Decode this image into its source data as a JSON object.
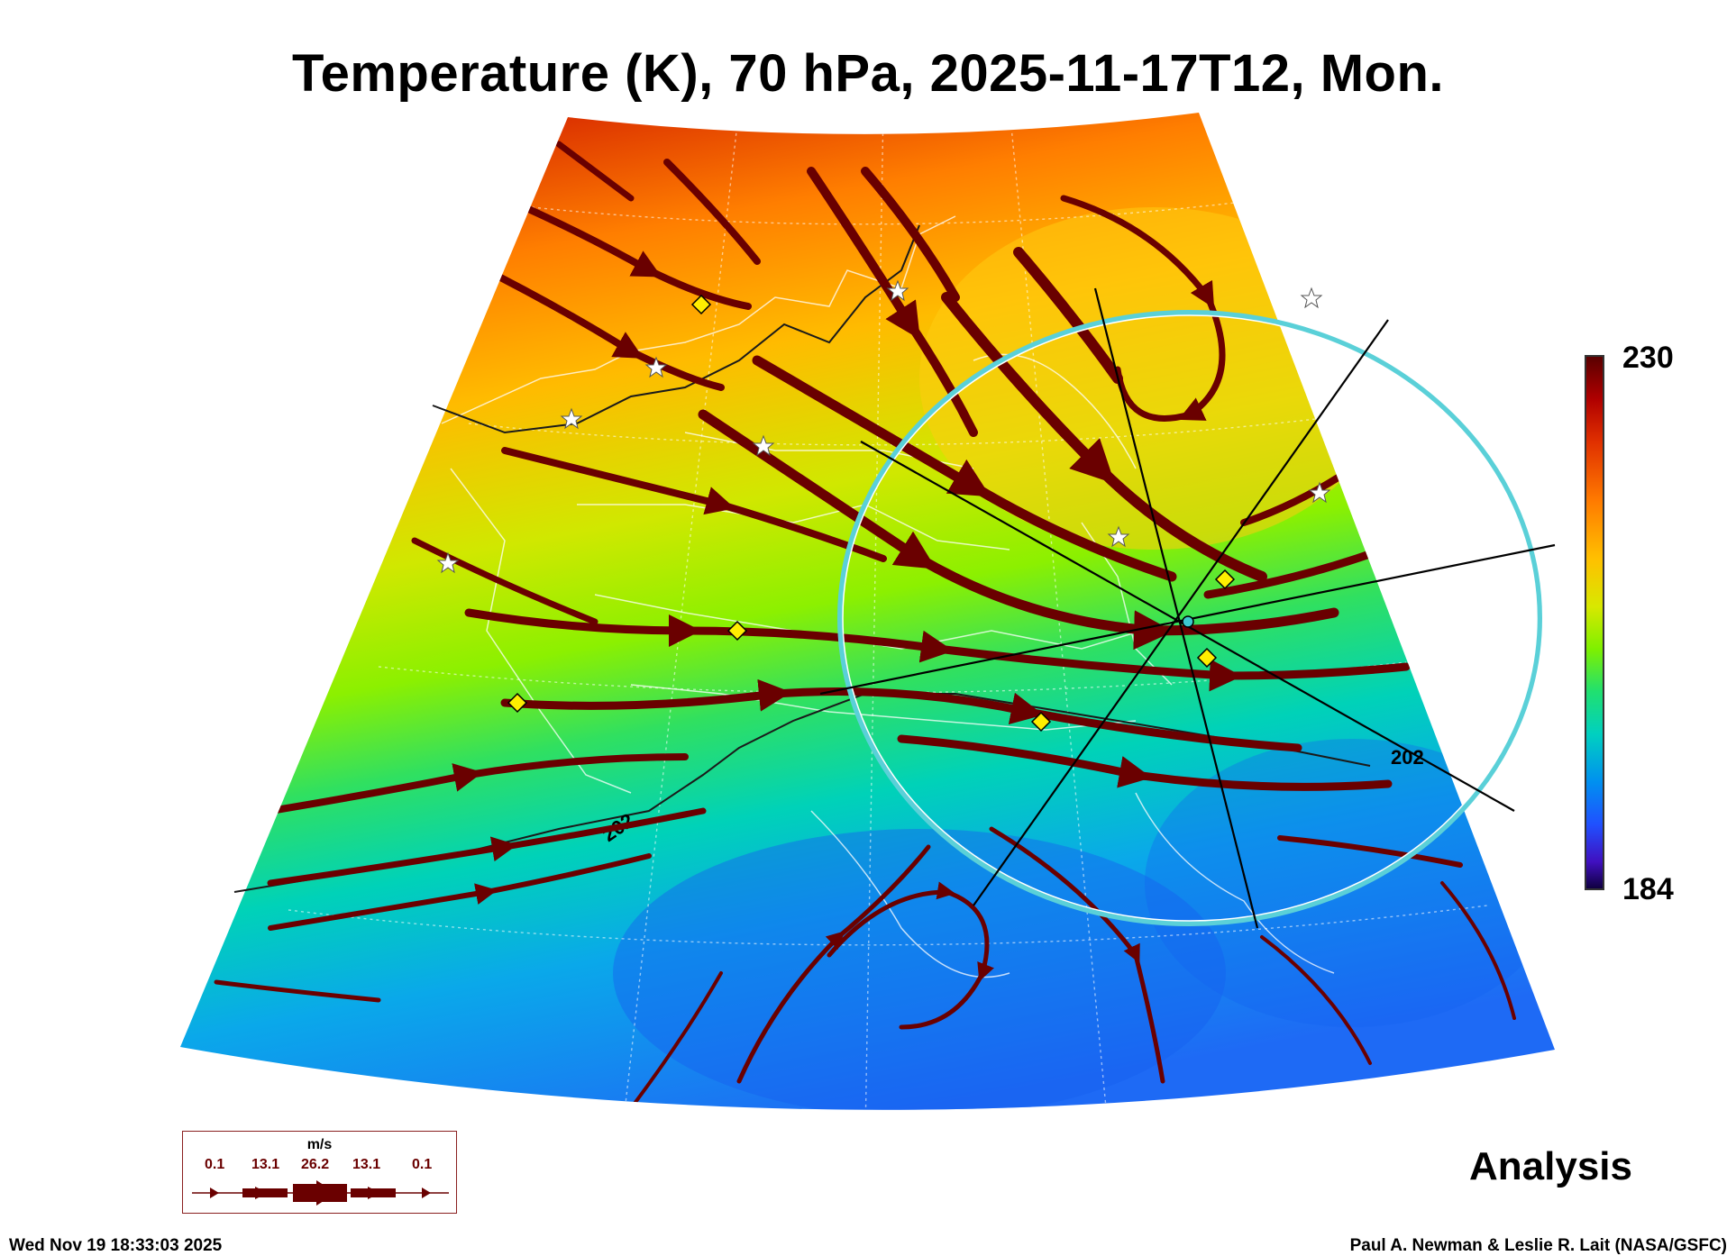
{
  "title": "Temperature (K), 70 hPa, 2025-11-17T12, Mon.",
  "colorbar": {
    "max_label": "230",
    "min_label": "184",
    "max": 230,
    "min": 184
  },
  "contour_labels": [
    "202",
    "202"
  ],
  "wind_legend": {
    "unit": "m/s",
    "values": [
      "0.1",
      "13.1",
      "26.2",
      "13.1",
      "0.1"
    ]
  },
  "product_label": "Analysis",
  "timestamp": "Wed Nov 19 18:33:03 2025",
  "credit": "Paul A. Newman & Leslie R. Lait (NASA/GSFC)",
  "colors": {
    "streamline": "#6a0000",
    "ring": "#3cc8d0",
    "marker_fill": "#ffee00"
  },
  "icons": [
    "star-marker-icon",
    "diamond-marker-icon"
  ]
}
